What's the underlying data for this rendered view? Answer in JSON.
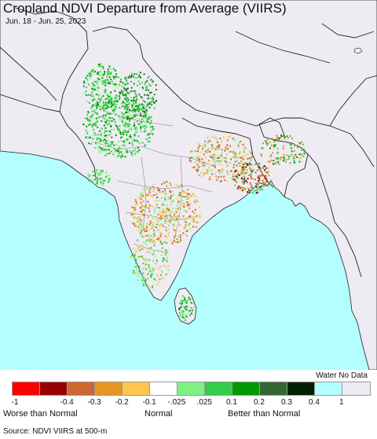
{
  "title": "Cropland NDVI Departure from Average (VIIRS)",
  "subtitle": "Jun. 18 - Jun. 25, 2023",
  "source": "Source: NDVI VIIRS at 500-m",
  "legend": {
    "water_label": "Water No Data",
    "swatches": [
      {
        "name": "lt-neg1",
        "color": "#ff0000"
      },
      {
        "name": "neg1-neg04",
        "color": "#990000"
      },
      {
        "name": "neg04-neg03",
        "color": "#cc6633"
      },
      {
        "name": "neg03-neg02",
        "color": "#e69520"
      },
      {
        "name": "neg02-neg01",
        "color": "#ffc64d"
      },
      {
        "name": "neutral",
        "color": "#ffffff"
      },
      {
        "name": "p025-p01",
        "color": "#80f080"
      },
      {
        "name": "p01-p02",
        "color": "#33cc4d"
      },
      {
        "name": "p02-p03",
        "color": "#009900"
      },
      {
        "name": "p03-p04",
        "color": "#336633"
      },
      {
        "name": "gt-p04",
        "color": "#002200"
      },
      {
        "name": "water",
        "color": "#b3ffff"
      },
      {
        "name": "no-data",
        "color": "#eeebf2"
      }
    ],
    "ticks": [
      "-1",
      "-0.4",
      "-0.3",
      "-0.2",
      "-0.1",
      "-.025",
      ".025",
      "0.1",
      "0.2",
      "0.3",
      "0.4",
      "1"
    ],
    "categories": {
      "worse": "Worse than Normal",
      "normal": "Normal",
      "better": "Better than Normal"
    }
  },
  "colors": {
    "ocean": "#b3ffff",
    "land": "#eeebf2",
    "border": "#222222"
  }
}
